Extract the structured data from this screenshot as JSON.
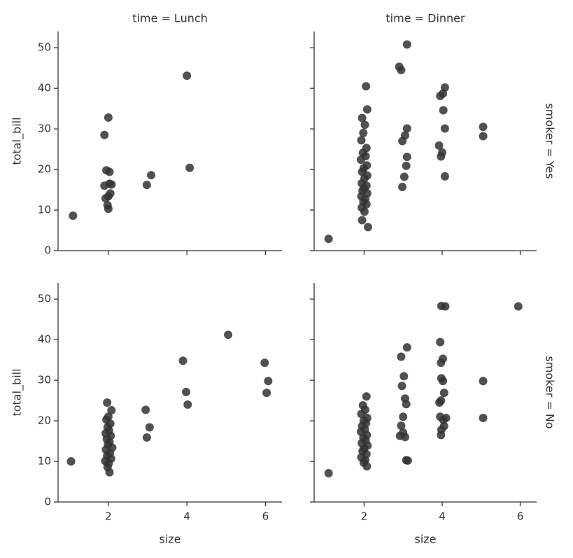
{
  "chart_data": [
    {
      "type": "scatter",
      "title": "time = Lunch",
      "ylabel": "total_bill",
      "color": "#333333",
      "show_xticklabels": false,
      "show_yticklabels": true,
      "x": [
        1.1,
        2.0,
        1.9,
        1.95,
        2.03,
        1.9,
        2.03,
        2.08,
        2.0,
        1.93,
        2.0,
        1.98,
        2.05,
        2.98,
        3.09,
        4.0,
        4.07
      ],
      "y": [
        8.6,
        32.8,
        28.5,
        19.8,
        19.4,
        16.0,
        16.5,
        16.3,
        13.4,
        12.9,
        10.3,
        11.2,
        14.1,
        16.2,
        18.6,
        43.1,
        20.4
      ],
      "xlim": [
        0.72,
        6.42
      ],
      "ylim": [
        0,
        54
      ],
      "xticks": [
        2,
        4,
        6
      ],
      "yticks": [
        0,
        10,
        20,
        30,
        40,
        50
      ]
    },
    {
      "type": "scatter",
      "title": "time = Dinner",
      "row_label": "smoker = Yes",
      "color": "#333333",
      "show_xticklabels": false,
      "show_yticklabels": false,
      "x": [
        1.09,
        2.05,
        2.08,
        1.95,
        2.02,
        1.98,
        1.93,
        2.06,
        1.97,
        2.04,
        1.92,
        2.07,
        1.99,
        1.95,
        2.08,
        2.01,
        1.94,
        2.06,
        2.0,
        1.96,
        2.08,
        1.93,
        2.03,
        1.98,
        2.06,
        1.94,
        2.01,
        1.95,
        2.1,
        2.9,
        2.95,
        3.1,
        3.1,
        3.05,
        2.98,
        3.1,
        3.08,
        3.03,
        2.98,
        4.07,
        3.95,
        4.02,
        4.03,
        4.07,
        3.92,
        4.0,
        3.97,
        4.07,
        5.05,
        5.05
      ],
      "y": [
        2.9,
        40.5,
        34.8,
        32.7,
        31.0,
        29.0,
        27.2,
        25.3,
        24.1,
        23.3,
        22.4,
        21.0,
        20.3,
        19.4,
        18.5,
        17.8,
        16.6,
        16.0,
        15.4,
        14.8,
        14.1,
        13.4,
        12.7,
        12.0,
        11.4,
        10.6,
        9.6,
        7.5,
        5.8,
        45.3,
        44.5,
        50.8,
        30.1,
        28.4,
        27.0,
        23.1,
        20.9,
        18.2,
        15.7,
        40.2,
        38.1,
        38.7,
        34.6,
        30.1,
        25.9,
        24.2,
        23.2,
        18.3,
        30.5,
        28.2
      ],
      "xlim": [
        0.72,
        6.42
      ],
      "ylim": [
        0,
        54
      ],
      "xticks": [
        2,
        4,
        6
      ],
      "yticks": [
        0,
        10,
        20,
        30,
        40,
        50
      ]
    },
    {
      "type": "scatter",
      "ylabel": "total_bill",
      "xlabel": "size",
      "color": "#333333",
      "show_xticklabels": true,
      "show_yticklabels": true,
      "x": [
        1.05,
        1.97,
        2.08,
        2.0,
        1.95,
        2.05,
        1.98,
        2.02,
        1.93,
        2.06,
        1.96,
        2.03,
        1.99,
        2.1,
        1.94,
        2.04,
        1.97,
        2.07,
        1.92,
        2.01,
        1.98,
        2.03,
        2.95,
        3.05,
        2.98,
        3.9,
        3.98,
        4.02,
        5.05,
        5.98,
        6.07,
        6.03
      ],
      "y": [
        10.0,
        24.5,
        22.6,
        21.0,
        20.3,
        19.3,
        18.4,
        17.6,
        16.9,
        16.3,
        15.5,
        14.8,
        14.1,
        13.4,
        12.9,
        12.0,
        11.4,
        10.7,
        10.1,
        9.5,
        8.6,
        7.3,
        22.7,
        18.4,
        15.9,
        34.8,
        27.1,
        24.0,
        41.2,
        34.3,
        29.8,
        26.9
      ],
      "xlim": [
        0.72,
        6.42
      ],
      "ylim": [
        0,
        54
      ],
      "xticks": [
        2,
        4,
        6
      ],
      "yticks": [
        0,
        10,
        20,
        30,
        40,
        50
      ]
    },
    {
      "type": "scatter",
      "row_label": "smoker = No",
      "xlabel": "size",
      "color": "#333333",
      "show_xticklabels": true,
      "show_yticklabels": false,
      "x": [
        1.09,
        2.06,
        1.97,
        2.03,
        1.93,
        2.08,
        1.99,
        2.05,
        1.95,
        2.02,
        1.92,
        2.07,
        1.98,
        2.04,
        1.94,
        2.09,
        2.0,
        1.96,
        2.06,
        1.93,
        2.03,
        1.99,
        2.07,
        3.1,
        2.95,
        3.02,
        2.97,
        3.05,
        3.08,
        3.0,
        2.95,
        3.0,
        2.92,
        3.05,
        3.08,
        3.12,
        3.98,
        4.08,
        3.95,
        4.02,
        3.97,
        3.98,
        4.02,
        4.05,
        3.97,
        3.93,
        3.95,
        4.1,
        4.03,
        4.05,
        3.98,
        3.97,
        5.05,
        5.05,
        5.95
      ],
      "y": [
        7.1,
        26.0,
        23.8,
        22.7,
        21.7,
        20.7,
        20.0,
        19.4,
        18.7,
        17.9,
        17.3,
        16.5,
        15.8,
        15.2,
        14.5,
        13.9,
        13.2,
        12.5,
        11.8,
        11.0,
        10.3,
        9.7,
        8.8,
        38.1,
        35.8,
        31.0,
        28.6,
        25.5,
        24.1,
        21.0,
        18.8,
        17.1,
        16.3,
        16.0,
        10.3,
        10.2,
        48.3,
        48.2,
        39.4,
        35.3,
        34.3,
        30.5,
        29.8,
        26.9,
        25.0,
        24.5,
        21.0,
        20.7,
        20.2,
        18.7,
        17.8,
        16.5,
        29.8,
        20.7,
        48.2
      ],
      "xlim": [
        0.72,
        6.42
      ],
      "ylim": [
        0,
        54
      ],
      "xticks": [
        2,
        4,
        6
      ],
      "yticks": [
        0,
        10,
        20,
        30,
        40,
        50
      ]
    }
  ]
}
